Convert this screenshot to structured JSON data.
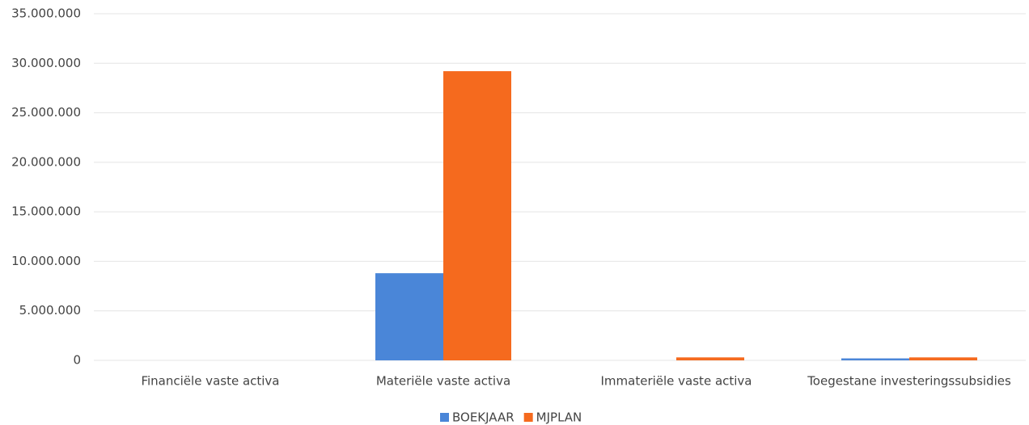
{
  "chart_data": {
    "type": "bar",
    "categories": [
      "Financiële vaste activa",
      "Materiële vaste activa",
      "Immateriële vaste activa",
      "Toegestane investeringssubsidies"
    ],
    "series": [
      {
        "name": "BOEKJAAR",
        "color": "#4a86d8",
        "values": [
          0,
          8800000,
          0,
          200000
        ]
      },
      {
        "name": "MJPLAN",
        "color": "#f56a1e",
        "values": [
          0,
          29200000,
          300000,
          300000
        ]
      }
    ],
    "ylim": [
      0,
      35000000
    ],
    "yticks": [
      0,
      {
        "value": 5000000,
        "label": "5.000.000"
      },
      {
        "value": 10000000,
        "label": "10.000.000"
      },
      {
        "value": 15000000,
        "label": "15.000.000"
      },
      {
        "value": 20000000,
        "label": "20.000.000"
      },
      {
        "value": 25000000,
        "label": "25.000.000"
      },
      {
        "value": 30000000,
        "label": "30.000.000"
      },
      {
        "value": 35000000,
        "label": "35.000.000"
      }
    ],
    "grid": true,
    "legend": "bottom"
  }
}
